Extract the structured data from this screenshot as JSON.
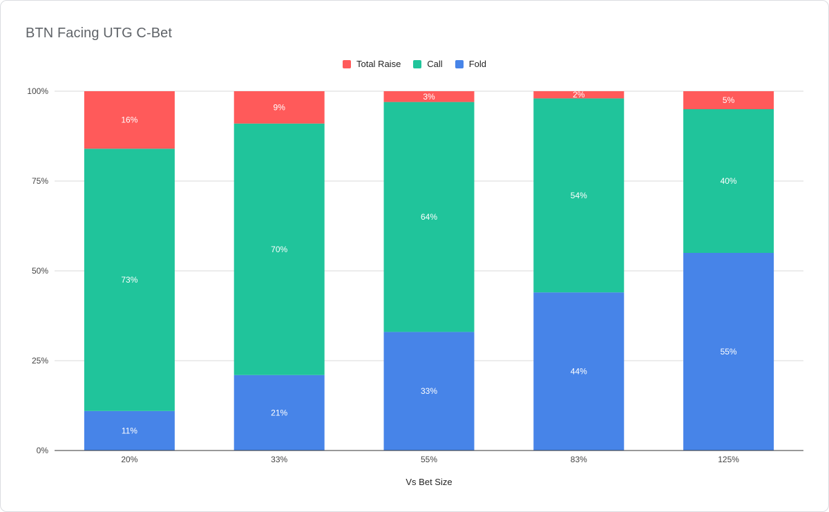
{
  "title": "BTN Facing UTG C-Bet",
  "colors": {
    "Total Raise": "#ff5a5a",
    "Call": "#20c49b",
    "Fold": "#4784e8",
    "grid": "#d9d9d9",
    "baseline": "#333333"
  },
  "chart_data": {
    "type": "bar",
    "stacked": true,
    "title": "BTN Facing UTG C-Bet",
    "xlabel": "Vs Bet Size",
    "ylabel": "",
    "categories": [
      "20%",
      "33%",
      "55%",
      "83%",
      "125%"
    ],
    "series": [
      {
        "name": "Fold",
        "values": [
          11,
          21,
          33,
          44,
          55
        ],
        "labels": [
          "11%",
          "21%",
          "33%",
          "44%",
          "55%"
        ]
      },
      {
        "name": "Call",
        "values": [
          73,
          70,
          64,
          54,
          40
        ],
        "labels": [
          "73%",
          "70%",
          "64%",
          "54%",
          "40%"
        ]
      },
      {
        "name": "Total Raise",
        "values": [
          16,
          9,
          3,
          2,
          5
        ],
        "labels": [
          "16%",
          "9%",
          "3%",
          "2%",
          "5%"
        ]
      }
    ],
    "legend_order": [
      "Total Raise",
      "Call",
      "Fold"
    ],
    "legend_position": "top-center",
    "ylim": [
      0,
      100
    ],
    "yticks": [
      0,
      25,
      50,
      75,
      100
    ],
    "ytick_labels": [
      "0%",
      "25%",
      "50%",
      "75%",
      "100%"
    ],
    "grid": true
  }
}
